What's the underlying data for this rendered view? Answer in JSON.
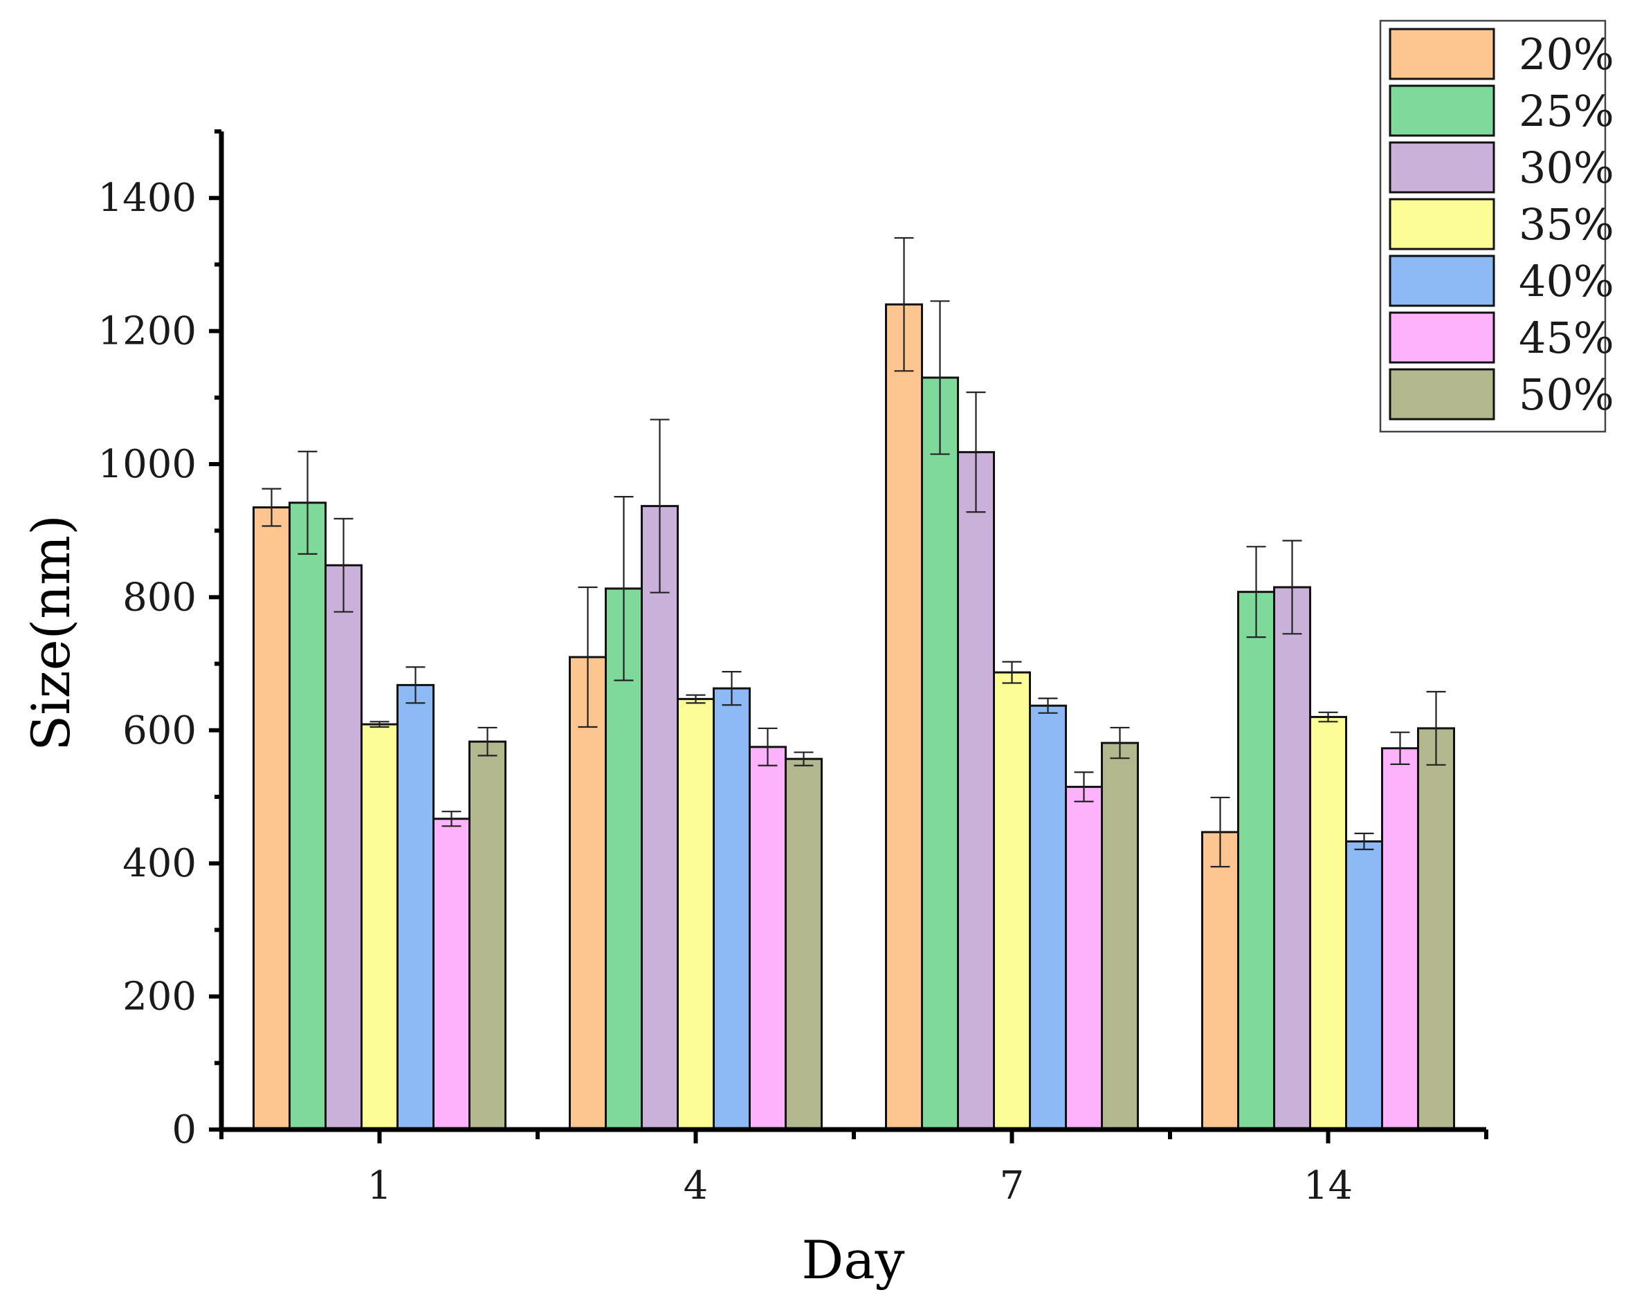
{
  "chart_data": {
    "type": "bar",
    "title": "",
    "xlabel": "Day",
    "ylabel": "Size(nm)",
    "ylim": [
      0,
      1500
    ],
    "yticks": [
      0,
      200,
      400,
      600,
      800,
      1000,
      1200,
      1400
    ],
    "categories": [
      "1",
      "4",
      "7",
      "14"
    ],
    "legend_position": "top-right",
    "series": [
      {
        "name": "20%",
        "color": "#fdc590",
        "values": [
          935,
          710,
          1240,
          447
        ],
        "errors": [
          28,
          105,
          100,
          52
        ]
      },
      {
        "name": "25%",
        "color": "#7fd99a",
        "values": [
          942,
          813,
          1130,
          808
        ],
        "errors": [
          77,
          138,
          115,
          68
        ]
      },
      {
        "name": "30%",
        "color": "#c9b1d9",
        "values": [
          848,
          937,
          1018,
          815
        ],
        "errors": [
          70,
          130,
          90,
          70
        ]
      },
      {
        "name": "35%",
        "color": "#fdfd98",
        "values": [
          609,
          647,
          687,
          620
        ],
        "errors": [
          4,
          6,
          16,
          7
        ]
      },
      {
        "name": "40%",
        "color": "#8dbaf5",
        "values": [
          668,
          663,
          637,
          433
        ],
        "errors": [
          27,
          25,
          11,
          12
        ]
      },
      {
        "name": "45%",
        "color": "#fdb3fc",
        "values": [
          467,
          575,
          515,
          573
        ],
        "errors": [
          11,
          28,
          22,
          24
        ]
      },
      {
        "name": "50%",
        "color": "#b2b78d",
        "values": [
          583,
          557,
          581,
          603
        ],
        "errors": [
          21,
          10,
          23,
          55
        ]
      }
    ]
  }
}
